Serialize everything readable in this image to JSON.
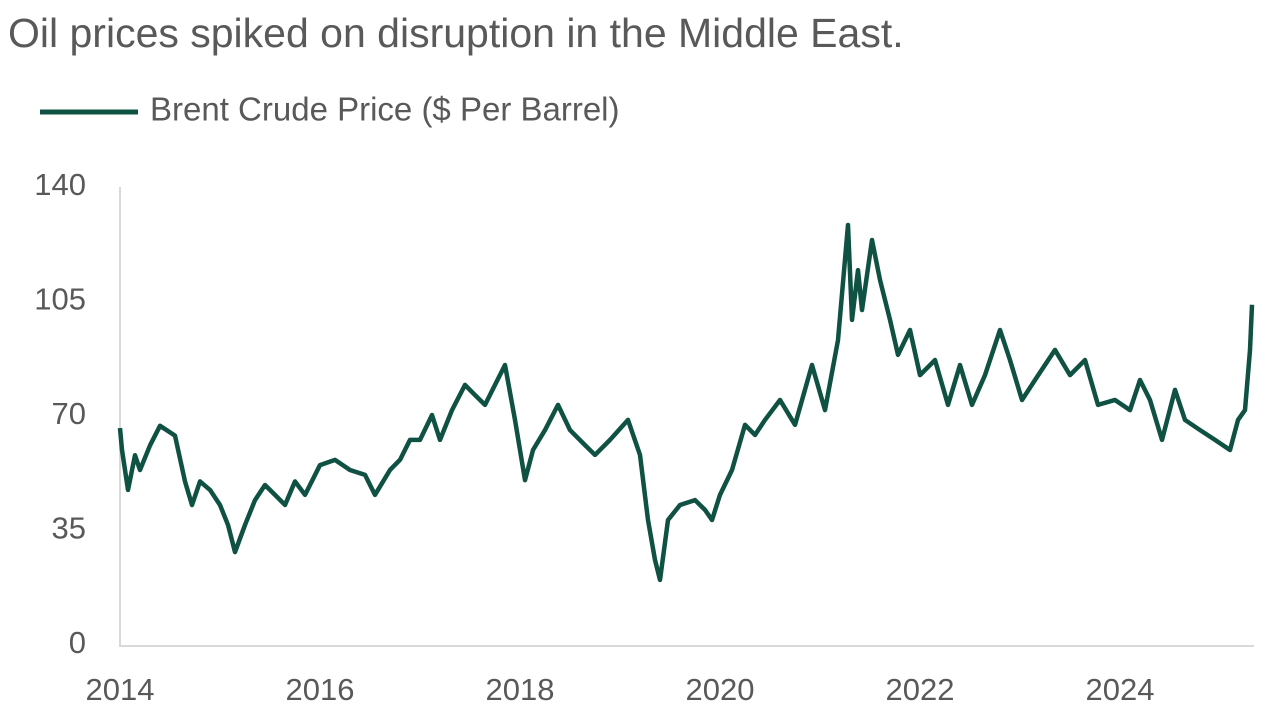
{
  "chart_data": {
    "type": "line",
    "title": "Oil prices spiked on disruption in the Middle East.",
    "x": [
      2014,
      2014.02,
      2014.08,
      2014.15,
      2014.2,
      2014.3,
      2014.4,
      2014.55,
      2014.65,
      2014.72,
      2014.8,
      2014.9,
      2015,
      2015.08,
      2015.15,
      2015.25,
      2015.35,
      2015.45,
      2015.55,
      2015.65,
      2015.75,
      2015.85,
      2016,
      2016.15,
      2016.3,
      2016.45,
      2016.55,
      2016.7,
      2016.8,
      2016.9,
      2017,
      2017.12,
      2017.2,
      2017.32,
      2017.45,
      2017.55,
      2017.65,
      2017.75,
      2017.85,
      2017.95,
      2018.05,
      2018.13,
      2018.25,
      2018.38,
      2018.5,
      2018.65,
      2018.75,
      2018.9,
      2019.08,
      2019.2,
      2019.28,
      2019.35,
      2019.4,
      2019.48,
      2019.6,
      2019.75,
      2019.85,
      2019.92,
      2020,
      2020.12,
      2020.25,
      2020.35,
      2020.45,
      2020.6,
      2020.75,
      2020.92,
      2021.05,
      2021.18,
      2021.28,
      2021.32,
      2021.38,
      2021.42,
      2021.52,
      2021.6,
      2021.7,
      2021.78,
      2021.9,
      2022,
      2022.15,
      2022.28,
      2022.4,
      2022.52,
      2022.65,
      2022.8,
      2022.9,
      2023.02,
      2023.15,
      2023.35,
      2023.5,
      2023.65,
      2023.78,
      2023.95,
      2024.1,
      2024.2,
      2024.3,
      2024.42,
      2024.55,
      2024.65,
      2024.8,
      2024.95,
      2025.1,
      2025.18,
      2025.25,
      2025.3,
      2025.32
    ],
    "series": [
      {
        "name": "Brent Crude Price ($ Per Barrel)",
        "color": "#0f5142",
        "values": [
          66.3,
          59.6,
          47.4,
          58,
          53.5,
          61,
          67,
          64,
          50,
          42.8,
          50,
          47.4,
          42.8,
          36.7,
          28.4,
          36.7,
          44.3,
          48.9,
          45.9,
          42.8,
          50,
          45.9,
          55,
          56.6,
          53.5,
          52,
          45.9,
          53.5,
          56.6,
          62.7,
          62.7,
          70.3,
          62.7,
          71.8,
          79.5,
          76.4,
          73.4,
          79.5,
          85.6,
          68.8,
          50.4,
          59.6,
          65.7,
          73.4,
          65.7,
          61.1,
          58.1,
          62.7,
          68.8,
          58.1,
          38.2,
          26,
          19.9,
          38.2,
          42.8,
          44.3,
          41.3,
          38.2,
          45.9,
          53.5,
          67.3,
          64.2,
          68.8,
          74.9,
          67.3,
          85.6,
          71.8,
          93.2,
          128.4,
          99.4,
          114.6,
          102.4,
          123.8,
          111.6,
          99.4,
          88.7,
          96.3,
          82.5,
          87.1,
          73.4,
          85.6,
          73.4,
          82.5,
          96.3,
          87.1,
          74.9,
          81,
          90.2,
          82.5,
          87.1,
          73.4,
          74.9,
          71.8,
          81,
          74.9,
          62.7,
          78,
          68.8,
          65.7,
          62.7,
          59.6,
          68.8,
          71.8,
          90.2,
          104
        ]
      }
    ],
    "xlim": [
      2014,
      2025.32
    ],
    "xticks": [
      2014,
      2016,
      2018,
      2020,
      2022,
      2024
    ],
    "ylim": [
      0,
      140
    ],
    "yticks": [
      0,
      35,
      70,
      105,
      140
    ],
    "grid": false,
    "legend": "top-left"
  }
}
